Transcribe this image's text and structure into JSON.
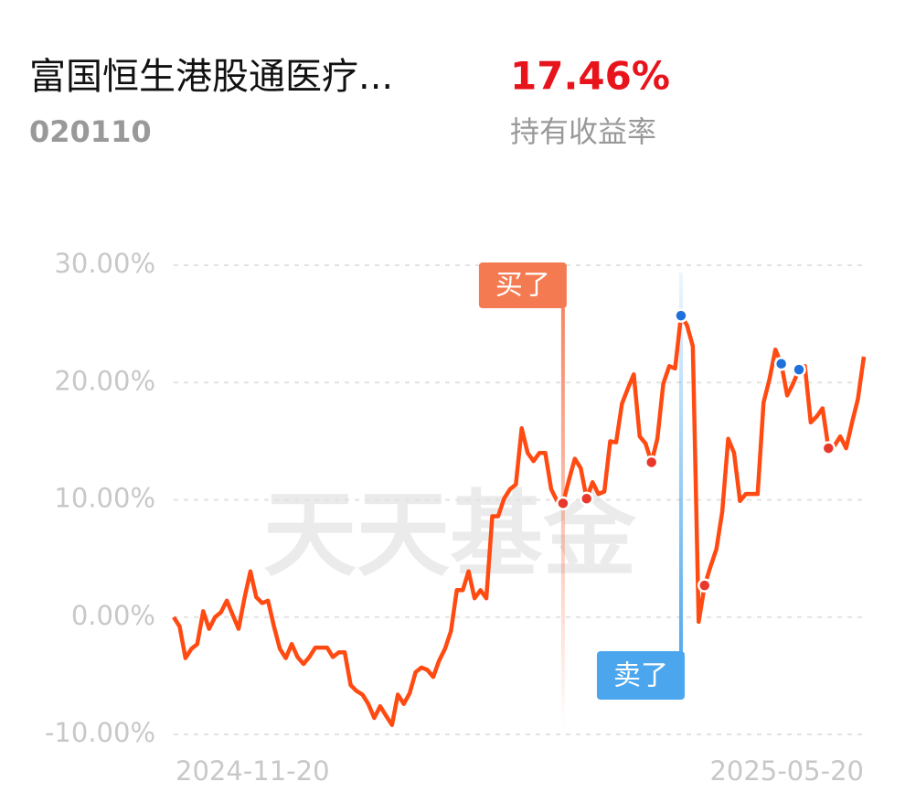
{
  "header": {
    "title": "富国恒生港股通医疗...",
    "code": "020110",
    "return": "17.46%",
    "return_label": "持有收益率"
  },
  "chart_data": {
    "type": "line",
    "watermark": "天天基金",
    "x_range_labels": [
      "2024-11-20",
      "2025-05-20"
    ],
    "ylim": [
      -10,
      30
    ],
    "yticks": [
      {
        "value": 30,
        "label": "30.00%"
      },
      {
        "value": 20,
        "label": "20.00%"
      },
      {
        "value": 10,
        "label": "10.00%"
      },
      {
        "value": 0,
        "label": "0.00%"
      },
      {
        "value": -10,
        "label": "-10.00%"
      }
    ],
    "grid": true,
    "color": "#ff4a12",
    "values": [
      0,
      -0.8,
      -3.5,
      -2.7,
      -2.3,
      0.5,
      -1.0,
      0,
      0.4,
      1.4,
      0.2,
      -1.0,
      1.6,
      3.9,
      1.7,
      1.2,
      1.4,
      -0.8,
      -2.7,
      -3.5,
      -2.3,
      -3.4,
      -4.0,
      -3.4,
      -2.6,
      -2.6,
      -2.6,
      -3.4,
      -3.0,
      -3.0,
      -5.8,
      -6.3,
      -6.6,
      -7.4,
      -8.6,
      -7.6,
      -8.4,
      -9.2,
      -6.6,
      -7.4,
      -6.5,
      -4.7,
      -4.3,
      -4.5,
      -5.1,
      -3.7,
      -2.7,
      -1.2,
      2.3,
      2.3,
      3.9,
      1.6,
      2.3,
      1.6,
      8.6,
      8.6,
      10.1,
      10.9,
      11.3,
      16.1,
      14.0,
      13.3,
      14.0,
      14.0,
      10.9,
      9.9,
      9.7,
      11.7,
      13.5,
      12.7,
      10.1,
      11.5,
      10.5,
      10.7,
      15.0,
      14.9,
      18.2,
      19.5,
      20.7,
      15.4,
      14.8,
      13.2,
      15.2,
      19.9,
      21.4,
      21.2,
      25.7,
      24.9,
      23.1,
      -0.4,
      2.7,
      4.3,
      5.8,
      9.0,
      15.2,
      14.0,
      9.9,
      10.5,
      10.5,
      10.5,
      18.3,
      20.3,
      22.8,
      21.6,
      18.9,
      19.9,
      21.1,
      21.4,
      16.6,
      17.1,
      17.8,
      14.4,
      14.6,
      15.4,
      14.4,
      16.6,
      18.6,
      22.2
    ],
    "buy": {
      "label": "买了",
      "color": "#e8382c",
      "tag_color": "#f47a52",
      "points": [
        66,
        70,
        81,
        90,
        111
      ]
    },
    "sell": {
      "label": "卖了",
      "color": "#1f6fdc",
      "tag_color": "#4ba6ee",
      "points": [
        86,
        103,
        106
      ]
    }
  }
}
